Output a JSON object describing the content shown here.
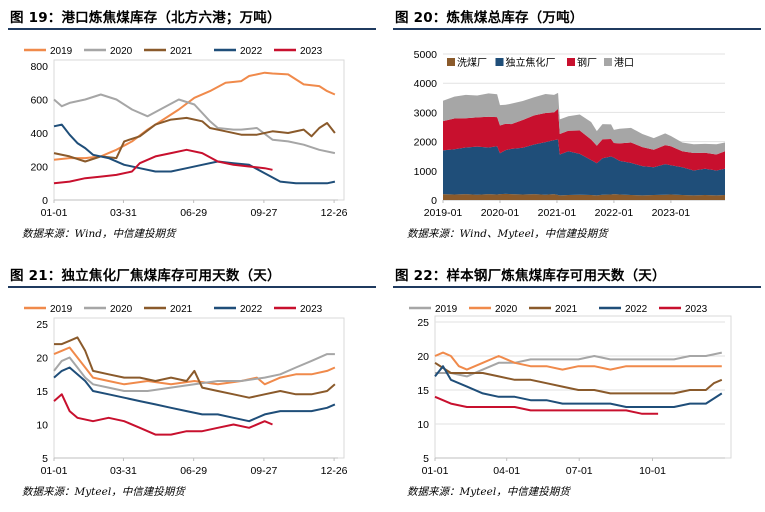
{
  "panels": [
    {
      "title": "图 19：港口炼焦煤库存（北方六港；万吨）",
      "source": "数据来源：Wind，中信建投期货"
    },
    {
      "title": "图 20：炼焦煤总库存（万吨）",
      "source": "数据来源：Wind、Myteel，中信建投期货"
    },
    {
      "title": "图 21：独立焦化厂焦煤库存可用天数（天）",
      "source": "数据来源：Myteel，中信建投期货"
    },
    {
      "title": "图 22：样本钢厂炼焦煤库存可用天数（天）",
      "source": "数据来源：Myteel，中信建投期货"
    }
  ],
  "chart_data": [
    {
      "type": "line",
      "ylim": [
        0,
        800
      ],
      "yticks": [
        0,
        200,
        400,
        600,
        800
      ],
      "xlim": [
        1,
        365
      ],
      "xticks": [
        {
          "x": 1,
          "label": "01-01"
        },
        {
          "x": 90,
          "label": "03-31"
        },
        {
          "x": 180,
          "label": "06-29"
        },
        {
          "x": 270,
          "label": "09-27"
        },
        {
          "x": 360,
          "label": "12-26"
        }
      ],
      "series": [
        {
          "name": "2019",
          "color": "#f08a4b",
          "x": [
            1,
            21,
            41,
            61,
            71,
            81,
            101,
            121,
            141,
            161,
            181,
            201,
            221,
            241,
            251,
            261,
            271,
            281,
            301,
            321,
            341,
            351,
            361
          ],
          "y": [
            240,
            250,
            250,
            260,
            280,
            300,
            350,
            420,
            480,
            540,
            610,
            650,
            700,
            710,
            740,
            750,
            760,
            755,
            750,
            690,
            680,
            650,
            630
          ]
        },
        {
          "name": "2020",
          "color": "#a6a6a6",
          "x": [
            1,
            11,
            21,
            41,
            61,
            81,
            101,
            121,
            141,
            161,
            181,
            201,
            211,
            231,
            241,
            261,
            281,
            301,
            321,
            341,
            361
          ],
          "y": [
            600,
            560,
            580,
            600,
            630,
            600,
            540,
            500,
            550,
            600,
            570,
            470,
            430,
            420,
            420,
            430,
            360,
            350,
            330,
            300,
            280
          ]
        },
        {
          "name": "2021",
          "color": "#8a5a2b",
          "x": [
            1,
            21,
            41,
            61,
            81,
            91,
            111,
            131,
            151,
            171,
            191,
            201,
            221,
            241,
            261,
            281,
            301,
            321,
            331,
            341,
            351,
            361
          ],
          "y": [
            280,
            260,
            230,
            260,
            250,
            350,
            380,
            450,
            480,
            490,
            470,
            430,
            410,
            390,
            390,
            410,
            400,
            420,
            380,
            430,
            460,
            400
          ]
        },
        {
          "name": "2022",
          "color": "#1f4e79",
          "x": [
            1,
            11,
            21,
            31,
            41,
            51,
            71,
            91,
            111,
            131,
            151,
            171,
            191,
            211,
            231,
            251,
            271,
            291,
            311,
            331,
            351,
            361
          ],
          "y": [
            440,
            450,
            390,
            340,
            310,
            270,
            250,
            210,
            190,
            170,
            170,
            190,
            210,
            230,
            220,
            210,
            160,
            110,
            100,
            100,
            100,
            110
          ]
        },
        {
          "name": "2023",
          "color": "#c8102e",
          "x": [
            1,
            21,
            41,
            61,
            81,
            101,
            111,
            131,
            151,
            171,
            191,
            211,
            231,
            251,
            271,
            281
          ],
          "y": [
            100,
            110,
            130,
            140,
            150,
            170,
            220,
            260,
            280,
            300,
            280,
            230,
            210,
            200,
            190,
            180
          ]
        }
      ]
    },
    {
      "type": "area",
      "stacked": true,
      "ylim": [
        0,
        5000
      ],
      "yticks": [
        0,
        1000,
        2000,
        3000,
        4000,
        5000
      ],
      "xlim": [
        2019.0,
        2023.95
      ],
      "xticks": [
        {
          "x": 2019.0,
          "label": "2019-01"
        },
        {
          "x": 2020.0,
          "label": "2020-01"
        },
        {
          "x": 2021.0,
          "label": "2021-01"
        },
        {
          "x": 2022.0,
          "label": "2022-01"
        },
        {
          "x": 2023.0,
          "label": "2023-01"
        }
      ],
      "x": [
        2019.0,
        2019.2,
        2019.4,
        2019.6,
        2019.8,
        2019.95,
        2020.0,
        2020.1,
        2020.2,
        2020.4,
        2020.6,
        2020.8,
        2020.95,
        2021.02,
        2021.05,
        2021.2,
        2021.4,
        2021.6,
        2021.7,
        2021.8,
        2021.95,
        2022.0,
        2022.1,
        2022.3,
        2022.5,
        2022.7,
        2022.9,
        2023.0,
        2023.2,
        2023.4,
        2023.6,
        2023.8,
        2023.95
      ],
      "series": [
        {
          "name": "洗煤厂",
          "color": "#8a5a2b",
          "values": [
            200,
            190,
            200,
            180,
            200,
            190,
            200,
            210,
            200,
            190,
            200,
            180,
            200,
            170,
            160,
            170,
            180,
            170,
            160,
            180,
            190,
            200,
            190,
            170,
            160,
            170,
            180,
            190,
            170,
            160,
            170,
            160,
            170
          ]
        },
        {
          "name": "独立焦化厂",
          "color": "#1f4e79",
          "values": [
            1500,
            1550,
            1600,
            1650,
            1600,
            1650,
            1400,
            1500,
            1550,
            1600,
            1700,
            1800,
            1850,
            1900,
            1400,
            1500,
            1400,
            1200,
            1100,
            1250,
            1300,
            1250,
            1150,
            1100,
            1000,
            950,
            1050,
            1000,
            950,
            850,
            900,
            850,
            900
          ]
        },
        {
          "name": "钢厂",
          "color": "#c8102e",
          "values": [
            1000,
            1050,
            1000,
            1000,
            1050,
            1000,
            950,
            900,
            850,
            950,
            1000,
            1000,
            950,
            1050,
            700,
            700,
            800,
            700,
            600,
            650,
            600,
            500,
            600,
            700,
            650,
            600,
            650,
            650,
            550,
            600,
            550,
            550,
            600
          ]
        },
        {
          "name": "港口",
          "color": "#a6a6a6",
          "values": [
            700,
            750,
            800,
            750,
            800,
            780,
            700,
            650,
            700,
            650,
            620,
            650,
            600,
            550,
            500,
            500,
            550,
            600,
            500,
            520,
            500,
            450,
            500,
            500,
            450,
            400,
            400,
            350,
            300,
            300,
            300,
            350,
            300
          ]
        }
      ]
    },
    {
      "type": "line",
      "ylim": [
        5,
        25
      ],
      "yticks": [
        5,
        10,
        15,
        20,
        25
      ],
      "xlim": [
        1,
        365
      ],
      "xticks": [
        {
          "x": 1,
          "label": "01-01"
        },
        {
          "x": 90,
          "label": "03-31"
        },
        {
          "x": 180,
          "label": "06-29"
        },
        {
          "x": 270,
          "label": "09-27"
        },
        {
          "x": 360,
          "label": "12-26"
        }
      ],
      "series": [
        {
          "name": "2019",
          "color": "#f08a4b",
          "x": [
            1,
            11,
            21,
            31,
            41,
            51,
            71,
            91,
            121,
            151,
            181,
            211,
            241,
            261,
            271,
            291,
            311,
            331,
            351,
            361
          ],
          "y": [
            20.5,
            21.0,
            21.5,
            20.0,
            18.5,
            17.0,
            16.5,
            16.0,
            16.5,
            16.0,
            16.5,
            16.0,
            16.5,
            17.0,
            16.0,
            17.0,
            17.5,
            17.5,
            18.0,
            18.5
          ]
        },
        {
          "name": "2020",
          "color": "#a6a6a6",
          "x": [
            1,
            11,
            21,
            31,
            41,
            51,
            71,
            91,
            121,
            151,
            181,
            211,
            241,
            271,
            291,
            311,
            331,
            351,
            361
          ],
          "y": [
            18.0,
            19.5,
            20.0,
            18.5,
            17.0,
            16.0,
            15.5,
            15.0,
            15.0,
            15.5,
            16.0,
            16.5,
            16.5,
            17.0,
            17.5,
            18.5,
            19.5,
            20.5,
            20.5
          ]
        },
        {
          "name": "2021",
          "color": "#8a5a2b",
          "x": [
            1,
            11,
            21,
            31,
            41,
            51,
            71,
            91,
            111,
            131,
            151,
            171,
            181,
            191,
            211,
            231,
            251,
            271,
            291,
            311,
            331,
            351,
            361
          ],
          "y": [
            22.0,
            22.0,
            22.5,
            23.0,
            21.0,
            18.0,
            17.5,
            17.0,
            17.0,
            16.5,
            17.0,
            16.5,
            18.0,
            15.5,
            15.0,
            14.5,
            14.0,
            14.5,
            15.0,
            14.5,
            14.5,
            15.0,
            16.0
          ]
        },
        {
          "name": "2022",
          "color": "#1f4e79",
          "x": [
            1,
            11,
            21,
            31,
            41,
            51,
            71,
            91,
            111,
            131,
            151,
            171,
            191,
            211,
            231,
            251,
            271,
            291,
            311,
            331,
            351,
            361
          ],
          "y": [
            17.0,
            18.0,
            18.5,
            17.5,
            16.5,
            15.0,
            14.5,
            14.0,
            13.5,
            13.0,
            12.5,
            12.0,
            11.5,
            11.5,
            11.0,
            10.5,
            11.5,
            12.0,
            12.0,
            12.0,
            12.5,
            13.0
          ]
        },
        {
          "name": "2023",
          "color": "#c8102e",
          "x": [
            1,
            11,
            21,
            31,
            51,
            71,
            91,
            111,
            131,
            151,
            171,
            191,
            211,
            231,
            251,
            271,
            281
          ],
          "y": [
            13.5,
            14.5,
            12.0,
            11.0,
            10.5,
            11.0,
            10.5,
            9.5,
            8.5,
            8.5,
            9.0,
            9.0,
            9.5,
            10.0,
            9.5,
            10.5,
            10.0
          ]
        }
      ]
    },
    {
      "type": "line",
      "ylim": [
        5,
        25
      ],
      "yticks": [
        5,
        10,
        15,
        20,
        25
      ],
      "xlim": [
        1,
        365
      ],
      "xticks": [
        {
          "x": 1,
          "label": "01-01"
        },
        {
          "x": 91,
          "label": "04-01"
        },
        {
          "x": 182,
          "label": "07-01"
        },
        {
          "x": 274,
          "label": "10-01"
        }
      ],
      "series": [
        {
          "name": "2019",
          "color": "#a6a6a6",
          "x": [
            1,
            21,
            41,
            61,
            81,
            101,
            121,
            141,
            161,
            181,
            201,
            221,
            241,
            261,
            281,
            301,
            321,
            341,
            361
          ],
          "y": [
            17.5,
            17.5,
            17.0,
            18.0,
            19.0,
            19.0,
            19.5,
            19.5,
            19.5,
            19.5,
            20.0,
            19.5,
            19.5,
            19.5,
            19.5,
            19.5,
            20.0,
            20.0,
            20.5
          ]
        },
        {
          "name": "2020",
          "color": "#f08a4b",
          "x": [
            1,
            11,
            21,
            31,
            41,
            61,
            81,
            101,
            121,
            141,
            161,
            181,
            201,
            221,
            241,
            261,
            281,
            301,
            321,
            341,
            361
          ],
          "y": [
            20.0,
            20.5,
            20.0,
            18.5,
            18.0,
            19.0,
            20.0,
            19.0,
            18.5,
            18.5,
            18.0,
            18.5,
            18.5,
            18.0,
            18.5,
            18.5,
            18.5,
            18.5,
            18.5,
            18.5,
            18.5
          ]
        },
        {
          "name": "2021",
          "color": "#8a5a2b",
          "x": [
            1,
            21,
            41,
            61,
            81,
            101,
            121,
            141,
            161,
            181,
            201,
            221,
            241,
            261,
            281,
            301,
            321,
            341,
            351,
            361
          ],
          "y": [
            19.0,
            17.5,
            17.5,
            17.5,
            17.0,
            16.5,
            16.5,
            16.0,
            15.5,
            15.0,
            15.0,
            14.5,
            14.5,
            14.5,
            14.5,
            14.5,
            15.0,
            15.0,
            16.0,
            16.5
          ]
        },
        {
          "name": "2022",
          "color": "#1f4e79",
          "x": [
            1,
            11,
            21,
            41,
            61,
            81,
            101,
            121,
            141,
            161,
            181,
            201,
            221,
            241,
            261,
            281,
            301,
            321,
            341,
            361
          ],
          "y": [
            17.0,
            18.5,
            16.5,
            15.5,
            14.5,
            14.0,
            14.0,
            13.5,
            13.5,
            13.0,
            13.0,
            13.0,
            13.0,
            12.5,
            12.5,
            12.5,
            12.5,
            13.0,
            13.0,
            14.5
          ]
        },
        {
          "name": "2023",
          "color": "#c8102e",
          "x": [
            1,
            21,
            41,
            61,
            81,
            101,
            121,
            141,
            161,
            181,
            201,
            221,
            241,
            261,
            281
          ],
          "y": [
            14.0,
            13.0,
            12.5,
            12.5,
            12.5,
            12.5,
            12.0,
            12.0,
            12.0,
            12.0,
            12.0,
            12.0,
            12.0,
            11.5,
            11.5
          ]
        }
      ]
    }
  ]
}
